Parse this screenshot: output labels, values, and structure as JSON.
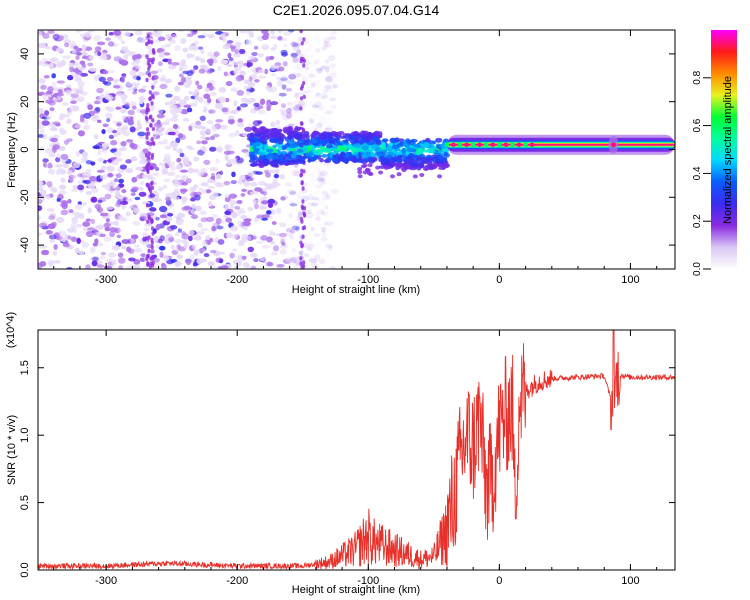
{
  "title": "C2E1.2026.095.07.04.G14",
  "colors": {
    "snr_line": "#e8302a",
    "axes": "#000000",
    "colormap": [
      "#ffffff",
      "#d9c6f5",
      "#8a2be2",
      "#3b2bf0",
      "#0a5cff",
      "#00d8ff",
      "#00ff9c",
      "#00ff33",
      "#e7f21d",
      "#ff8a00",
      "#ff1a1a",
      "#ff00ff"
    ]
  },
  "chart_data": [
    {
      "type": "heatmap",
      "title": "C2E1.2026.095.07.04.G14",
      "xlabel": "Height of straight line (km)",
      "ylabel": "Frequency (Hz)",
      "xlim": [
        -352,
        134
      ],
      "ylim": [
        -50,
        50
      ],
      "xticks": [
        -300,
        -200,
        -100,
        0,
        100
      ],
      "yticks": [
        -40,
        -20,
        0,
        20,
        40
      ],
      "colorbar": {
        "label": "Normalized spectral amplitude",
        "range": [
          0,
          1
        ],
        "ticks": [
          "0.0",
          "0.2",
          "0.4",
          "0.6",
          "0.8"
        ]
      },
      "features": [
        {
          "description": "dominant tone",
          "x_range": [
            -40,
            134
          ],
          "frequency_hz": 2,
          "amplitude": 0.95
        },
        {
          "description": "spread band",
          "x_range": [
            -190,
            -40
          ],
          "frequency_hz": [
            -12,
            12
          ],
          "amplitude": 0.45
        },
        {
          "description": "broadband noise",
          "x_range": [
            -352,
            -145
          ],
          "frequency_hz": [
            -50,
            50
          ],
          "amplitude": 0.15
        }
      ]
    },
    {
      "type": "line",
      "xlabel": "Height of straight line (km)",
      "ylabel": "SNR (10 * v/v)",
      "y_multiplier": "(x10^4)",
      "xlim": [
        -352,
        134
      ],
      "ylim": [
        0,
        1.78
      ],
      "xticks": [
        -300,
        -200,
        -100,
        0,
        100
      ],
      "yticks": [
        0.0,
        0.5,
        1.0,
        1.5
      ],
      "series": [
        {
          "x": [
            -352,
            -300,
            -255,
            -200,
            -150,
            -130,
            -110,
            -100,
            -95,
            -80,
            -60,
            -50,
            -40,
            -35,
            -30,
            -25,
            -20,
            -15,
            -10,
            -5,
            0,
            5,
            10,
            12,
            15,
            20,
            30,
            40,
            60,
            80,
            87,
            90,
            100,
            120,
            134
          ],
          "y": [
            0.03,
            0.03,
            0.05,
            0.03,
            0.03,
            0.06,
            0.15,
            0.25,
            0.2,
            0.15,
            0.08,
            0.1,
            0.3,
            0.5,
            0.8,
            1.0,
            0.9,
            1.15,
            0.6,
            0.7,
            1.05,
            1.15,
            1.2,
            0.45,
            1.25,
            1.33,
            1.4,
            1.42,
            1.43,
            1.44,
            1.2,
            1.45,
            1.43,
            1.43,
            1.43
          ]
        }
      ]
    }
  ]
}
